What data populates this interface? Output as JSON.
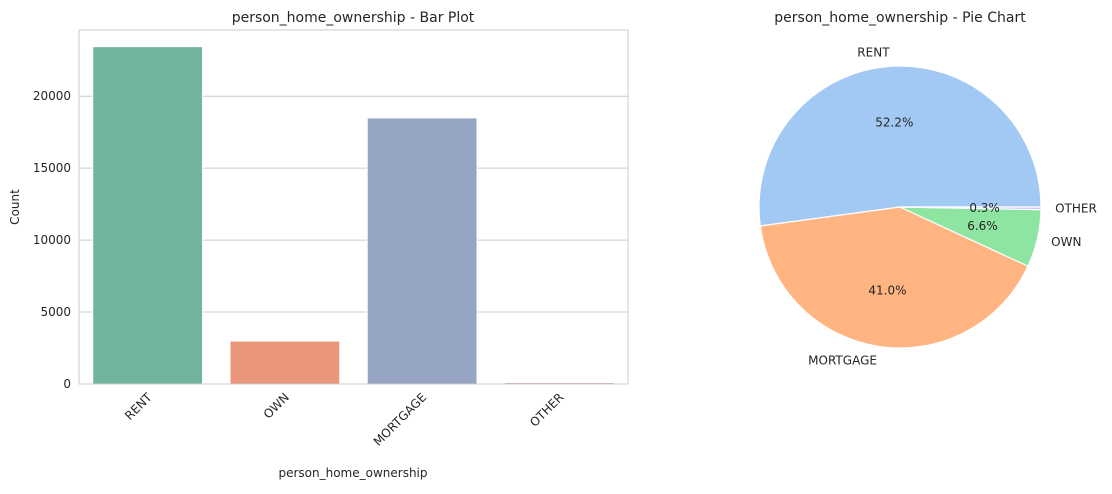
{
  "chart_data": [
    {
      "type": "bar",
      "title": "person_home_ownership - Bar Plot",
      "xlabel": "person_home_ownership",
      "ylabel": "Count",
      "categories": [
        "RENT",
        "OWN",
        "MORTGAGE",
        "OTHER"
      ],
      "values": [
        23443,
        2984,
        18489,
        107
      ],
      "colors": [
        "#73b4a0",
        "#e9967a",
        "#96a5c3",
        "#d4a1c4"
      ],
      "ylim": [
        0,
        24600
      ],
      "yticks": [
        0,
        5000,
        10000,
        15000,
        20000
      ],
      "grid": true
    },
    {
      "type": "pie",
      "title": "person_home_ownership - Pie Chart",
      "labels": [
        "RENT",
        "MORTGAGE",
        "OWN",
        "OTHER"
      ],
      "percent_labels": [
        "52.2%",
        "41.0%",
        "6.6%",
        "0.3%"
      ],
      "values": [
        52.2,
        41.0,
        6.6,
        0.3
      ],
      "colors": [
        "#a1c9f4",
        "#ffb482",
        "#8de5a1",
        "#d0bbff"
      ]
    }
  ]
}
